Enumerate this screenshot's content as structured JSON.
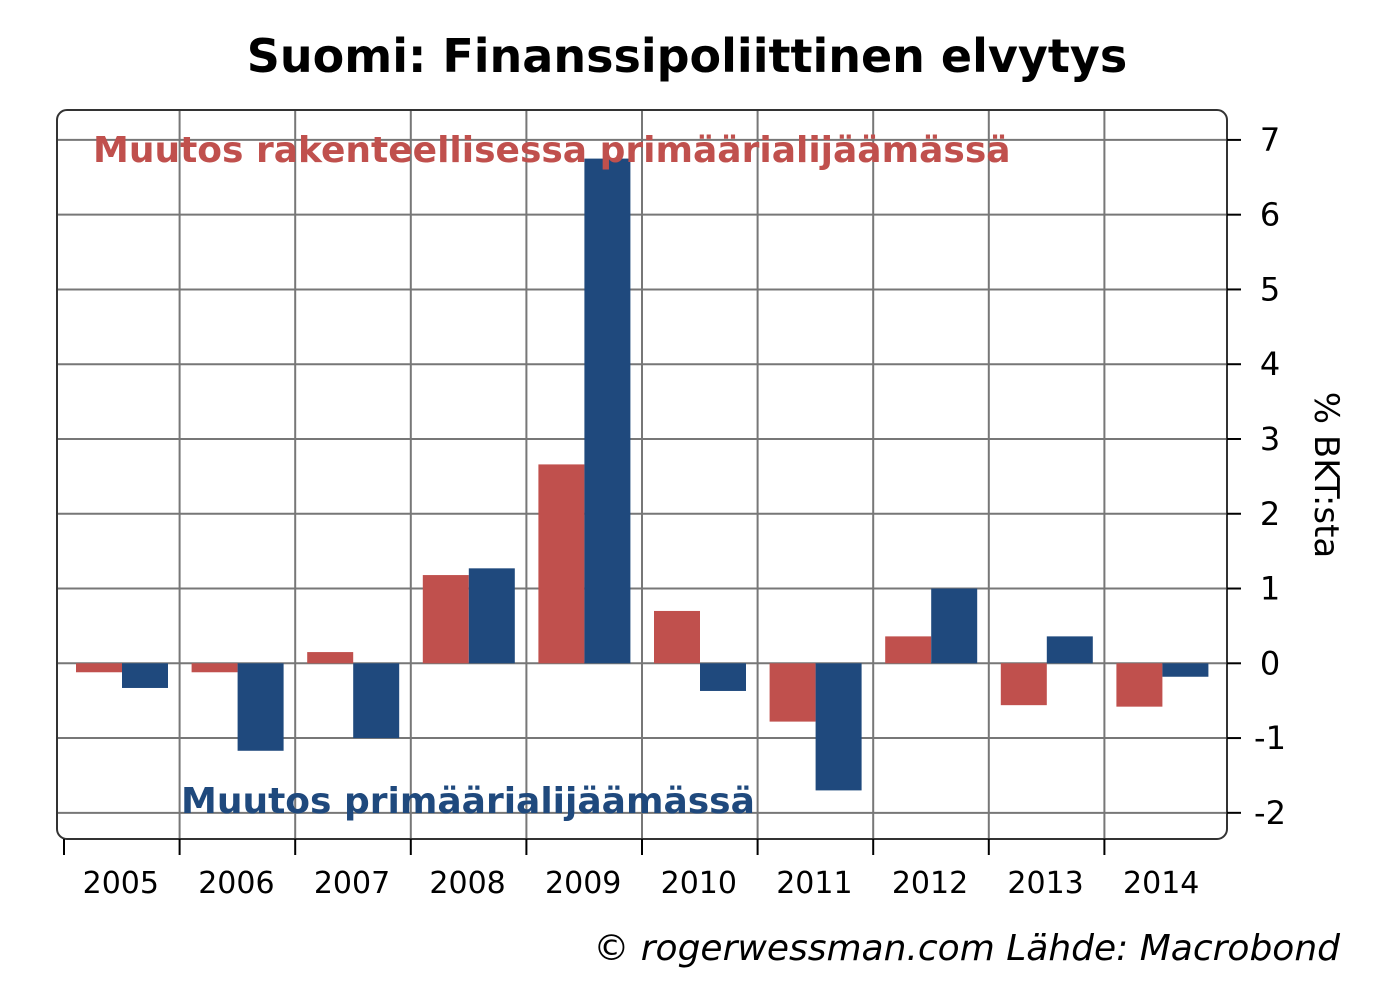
{
  "chart_data": {
    "type": "bar",
    "title": "Suomi: Finanssipoliittinen elvytys",
    "ylabel": "% BKT:sta",
    "credit": "© rogerwessman.com Lähde: Macrobond",
    "categories": [
      "2005",
      "2006",
      "2007",
      "2008",
      "2009",
      "2010",
      "2011",
      "2012",
      "2013",
      "2014"
    ],
    "ylim": [
      -2.35,
      7.4
    ],
    "yticks": [
      -2,
      -1,
      0,
      1,
      2,
      3,
      4,
      5,
      6,
      7
    ],
    "grid": true,
    "series": [
      {
        "name": "Muutos rakenteellisessa primäärialijäämässä",
        "color": "#c0504d",
        "values": [
          -0.12,
          -0.12,
          0.15,
          1.18,
          2.66,
          0.7,
          -0.78,
          0.36,
          -0.56,
          -0.58
        ]
      },
      {
        "name": "Muutos primäärialijäämässä",
        "color": "#1f497d",
        "values": [
          -0.33,
          -1.17,
          -1.0,
          1.27,
          6.75,
          -0.37,
          -1.7,
          1.0,
          0.36,
          -0.18
        ]
      }
    ]
  }
}
